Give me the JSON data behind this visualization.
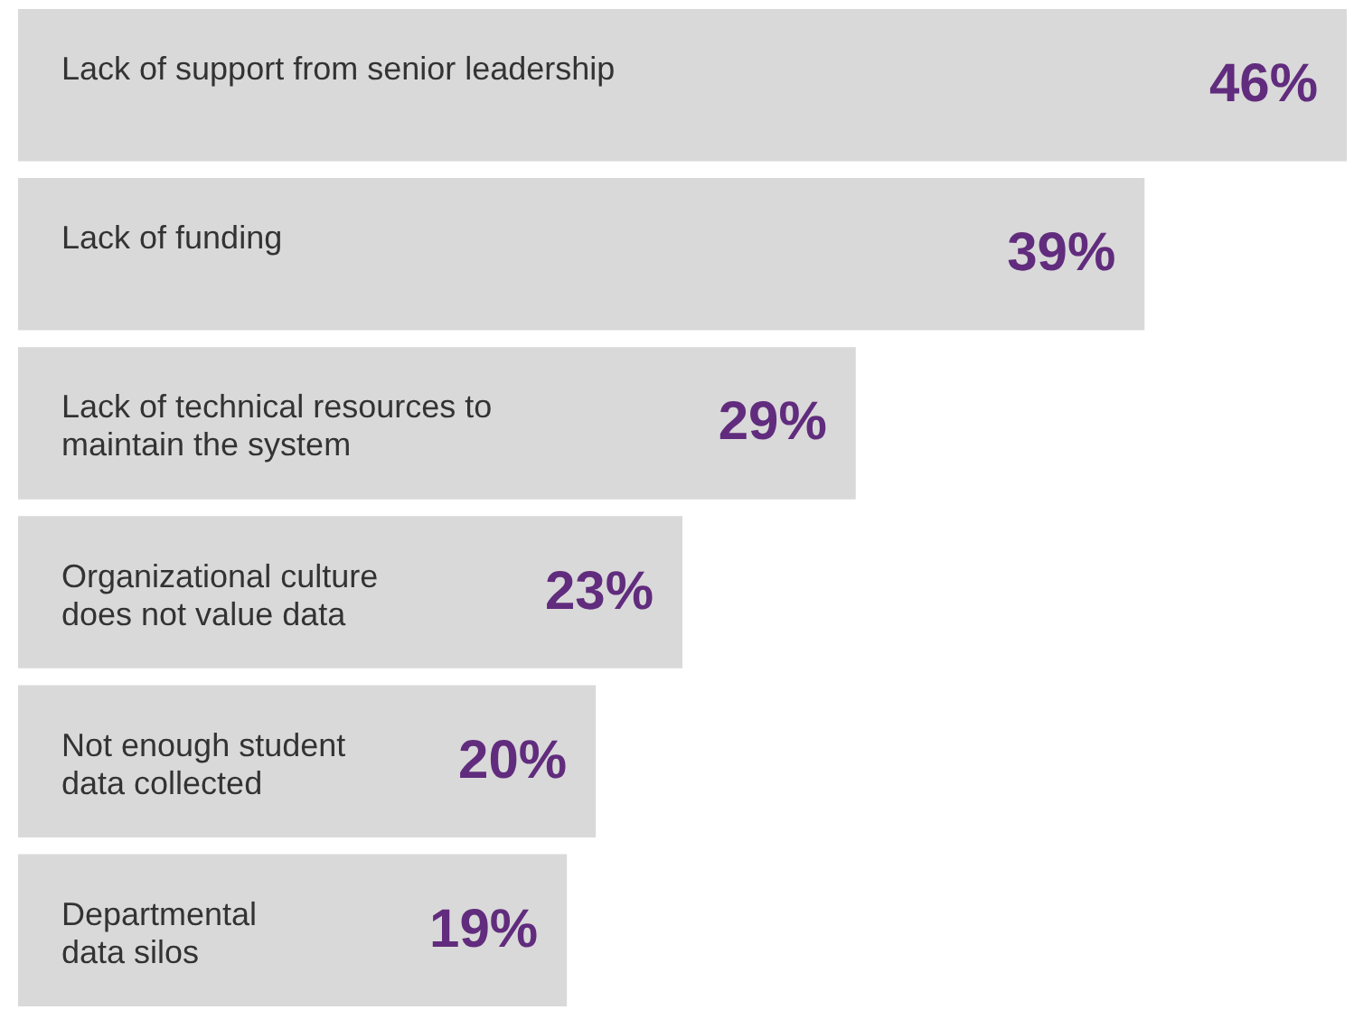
{
  "chart_data": {
    "type": "bar",
    "orientation": "horizontal",
    "categories": [
      "Lack of support from senior leadership",
      "Lack of funding",
      "Lack of technical resources to maintain the system",
      "Organizational culture does not value data",
      "Not enough student data collected",
      "Departmental data silos"
    ],
    "values": [
      46,
      39,
      29,
      23,
      20,
      19
    ],
    "value_labels": [
      "46%",
      "39%",
      "29%",
      "23%",
      "20%",
      "19%"
    ],
    "color": "#d9d9d9"
  }
}
